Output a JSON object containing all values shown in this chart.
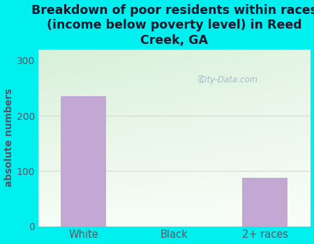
{
  "categories": [
    "White",
    "Black",
    "2+ races"
  ],
  "values": [
    235,
    0,
    88
  ],
  "bar_color": "#c4a8d4",
  "title": "Breakdown of poor residents within races\n(income below poverty level) in Reed\nCreek, GA",
  "ylabel": "absolute numbers",
  "ylim": [
    0,
    320
  ],
  "yticks": [
    0,
    100,
    200,
    300
  ],
  "bg_color": "#00f0f0",
  "plot_grad_top": "#d8efd8",
  "plot_grad_bottom": "#f0faf0",
  "title_color": "#1a1a2e",
  "title_fontsize": 12.5,
  "axis_label_color": "#555566",
  "tick_color": "#555566",
  "watermark": "City-Data.com",
  "grid_color": "#ccddcc"
}
